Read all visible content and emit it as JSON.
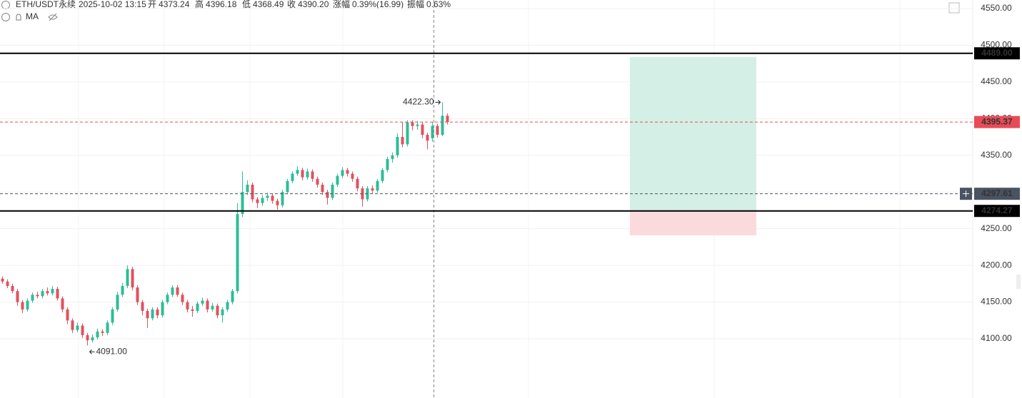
{
  "chart_data": {
    "type": "candlestick",
    "header": {
      "symbol": "ETH/USDT永续",
      "time": "2025-10-02 13:15",
      "fields": [
        {
          "name": "开",
          "text": "4373.24"
        },
        {
          "name": "高",
          "text": "4396.18"
        },
        {
          "name": "低",
          "text": "4368.49"
        },
        {
          "name": "收",
          "text": "4390.20"
        },
        {
          "name": "涨幅",
          "text": "0.39%(16.99)"
        },
        {
          "name": "振幅",
          "text": "0.63%"
        }
      ],
      "indicator": "MA"
    },
    "up_color": "#2ebd96",
    "down_color": "#e0525e",
    "open": [
      4182,
      4178,
      4172,
      4165,
      4150,
      4140,
      4152,
      4160,
      4158,
      4165,
      4162,
      4168,
      4155,
      4140,
      4125,
      4112,
      4118,
      4105,
      4098,
      4102,
      4110,
      4108,
      4122,
      4140,
      4160,
      4172,
      4195,
      4170,
      4150,
      4138,
      4128,
      4140,
      4132,
      4150,
      4160,
      4170,
      4160,
      4150,
      4140,
      4138,
      4148,
      4152,
      4140,
      4145,
      4132,
      4140,
      4150,
      4165,
      4270,
      4300,
      4310,
      4290,
      4285,
      4292,
      4295,
      4288,
      4282,
      4300,
      4315,
      4325,
      4330,
      4320,
      4328,
      4318,
      4310,
      4300,
      4292,
      4310,
      4322,
      4330,
      4325,
      4318,
      4305,
      4290,
      4305,
      4302,
      4315,
      4330,
      4345,
      4350,
      4375,
      4365,
      4395,
      4390,
      4392,
      4378,
      4373.24,
      4390.2,
      4378,
      4404
    ],
    "high": [
      4185,
      4181,
      4175,
      4168,
      4153,
      4155,
      4163,
      4164,
      4168,
      4170,
      4172,
      4171,
      4158,
      4143,
      4128,
      4122,
      4121,
      4108,
      4106,
      4114,
      4113,
      4125,
      4143,
      4164,
      4176,
      4200,
      4198,
      4173,
      4153,
      4141,
      4143,
      4143,
      4153,
      4163,
      4173,
      4173,
      4163,
      4153,
      4145,
      4151,
      4156,
      4155,
      4149,
      4148,
      4143,
      4153,
      4168,
      4285,
      4328,
      4316,
      4313,
      4293,
      4296,
      4299,
      4298,
      4291,
      4303,
      4318,
      4328,
      4335,
      4333,
      4332,
      4331,
      4321,
      4313,
      4303,
      4313,
      4325,
      4334,
      4333,
      4328,
      4321,
      4308,
      4308,
      4309,
      4318,
      4333,
      4348,
      4354,
      4380,
      4396,
      4398,
      4398,
      4397,
      4395,
      4381,
      4396.18,
      4393,
      4422.3,
      4407
    ],
    "low": [
      4175,
      4169,
      4162,
      4145,
      4135,
      4137,
      4149,
      4155,
      4155,
      4159,
      4159,
      4152,
      4136,
      4120,
      4108,
      4109,
      4101,
      4091,
      4095,
      4099,
      4104,
      4105,
      4119,
      4137,
      4157,
      4169,
      4166,
      4146,
      4132,
      4115,
      4125,
      4128,
      4129,
      4147,
      4157,
      4157,
      4146,
      4136,
      4130,
      4135,
      4145,
      4136,
      4137,
      4128,
      4122,
      4137,
      4147,
      4162,
      4266,
      4296,
      4286,
      4278,
      4281,
      4288,
      4284,
      4276,
      4279,
      4297,
      4312,
      4322,
      4316,
      4317,
      4314,
      4306,
      4296,
      4283,
      4289,
      4307,
      4319,
      4321,
      4314,
      4301,
      4280,
      4287,
      4298,
      4299,
      4312,
      4327,
      4340,
      4347,
      4361,
      4362,
      4384,
      4385,
      4373,
      4358,
      4368.49,
      4374,
      4376,
      4392
    ],
    "close": [
      4178,
      4172,
      4165,
      4150,
      4140,
      4152,
      4160,
      4158,
      4165,
      4162,
      4168,
      4155,
      4140,
      4125,
      4112,
      4118,
      4105,
      4098,
      4102,
      4110,
      4108,
      4122,
      4140,
      4160,
      4172,
      4195,
      4170,
      4150,
      4138,
      4128,
      4140,
      4132,
      4150,
      4160,
      4170,
      4160,
      4150,
      4140,
      4138,
      4148,
      4152,
      4140,
      4145,
      4132,
      4140,
      4150,
      4165,
      4270,
      4300,
      4310,
      4290,
      4285,
      4292,
      4295,
      4288,
      4282,
      4300,
      4315,
      4325,
      4330,
      4320,
      4328,
      4318,
      4310,
      4300,
      4292,
      4310,
      4322,
      4330,
      4325,
      4318,
      4305,
      4290,
      4305,
      4302,
      4315,
      4330,
      4345,
      4350,
      4375,
      4365,
      4395,
      4390,
      4392,
      4378,
      4370,
      4390.2,
      4378,
      4404,
      4395.37
    ],
    "ylim": [
      4040,
      4560
    ],
    "yticks": [
      {
        "value": 4100,
        "label": "4100.00"
      },
      {
        "value": 4150,
        "label": "4150.00"
      },
      {
        "value": 4200,
        "label": "4200.00"
      },
      {
        "value": 4250,
        "label": "4250.00"
      },
      {
        "value": 4300,
        "label": "4300.00"
      },
      {
        "value": 4350,
        "label": "4350.00"
      },
      {
        "value": 4400,
        "label": "4400.00"
      },
      {
        "value": 4450,
        "label": "4450.00"
      },
      {
        "value": 4500,
        "label": "4500.00"
      },
      {
        "value": 4550,
        "label": "4550.00"
      }
    ],
    "grid": true,
    "annotations": [
      {
        "value": 4422.3,
        "label": "4422.30"
      },
      {
        "value": 4091,
        "label": "4091.00"
      }
    ],
    "price_lines": [
      {
        "value": 4489,
        "label": "4489.00",
        "color": "#000000",
        "style": "solid"
      },
      {
        "value": 4395.37,
        "label": "4395.37",
        "color": "#e84b57",
        "style": "dashed"
      },
      {
        "value": 4297.61,
        "label": "4297.61",
        "color": "#4a5361",
        "style": "dashed"
      },
      {
        "value": 4274.27,
        "label": "4274.27",
        "color": "#000000",
        "style": "solid"
      }
    ],
    "position": {
      "target": 4484,
      "entry": 4274.27,
      "stop": 4241,
      "profit_color": "#d4efe6",
      "loss_color": "#fbdadd"
    }
  }
}
